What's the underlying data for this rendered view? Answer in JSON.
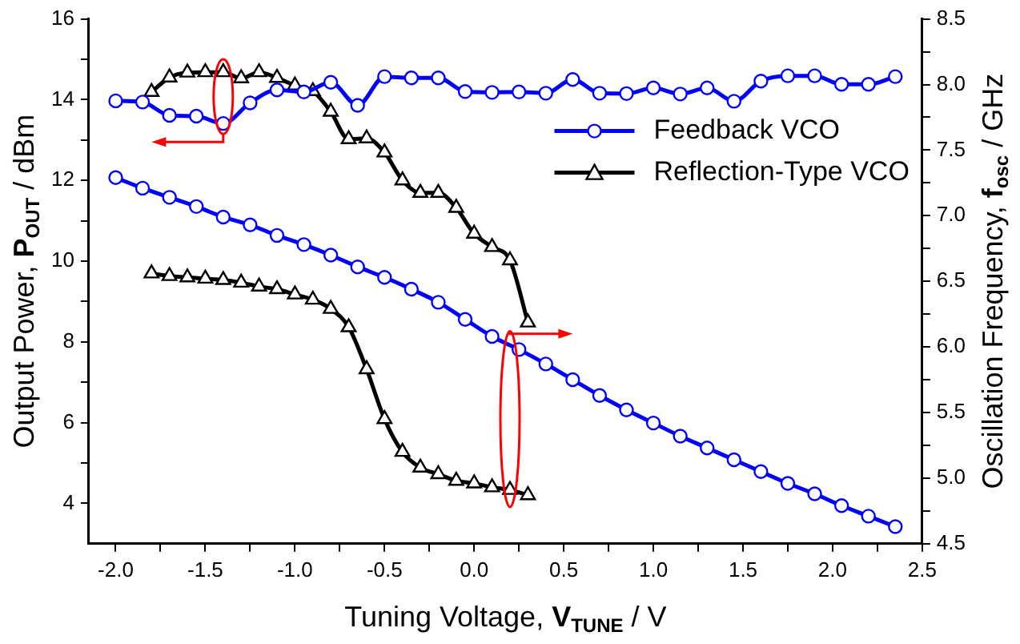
{
  "chart_data": {
    "type": "line",
    "xlabel": "Tuning Voltage, V$_{TUNE}$ / V",
    "ylabel": "Output Power, P$_{OUT}$ / dBm",
    "y2label": "Oscillation Frequency, f$_{osc}$ / GHz",
    "xlim": [
      -2.15,
      2.5
    ],
    "xticks": [
      {
        "value": -2,
        "label": "-2.0"
      },
      {
        "value": -1.75,
        "label": null
      },
      -1.5,
      {
        "value": -1.25,
        "label": null
      },
      {
        "value": -1,
        "label": "-1.0"
      },
      {
        "value": -0.75,
        "label": null
      },
      -0.5,
      {
        "value": -0.25,
        "label": null
      },
      {
        "value": 0,
        "label": "0.0"
      },
      {
        "value": 0.25,
        "label": null
      },
      0.5,
      {
        "value": 0.75,
        "label": null
      },
      {
        "value": 1,
        "label": "1.0"
      },
      {
        "value": 1.25,
        "label": null
      },
      1.5,
      {
        "value": 1.75,
        "label": null
      },
      {
        "value": 2,
        "label": "2.0"
      },
      {
        "value": 2.25,
        "label": null
      },
      2.5
    ],
    "ylim": [
      3,
      16
    ],
    "yticks": [
      4,
      {
        "value": 5,
        "label": null
      },
      6,
      {
        "value": 7,
        "label": null
      },
      8,
      {
        "value": 9,
        "label": null
      },
      10,
      {
        "value": 11,
        "label": null
      },
      12,
      {
        "value": 13,
        "label": null
      },
      14,
      {
        "value": 15,
        "label": null
      },
      16
    ],
    "y2lim": [
      4.5,
      8.5
    ],
    "y2ticks": [
      4.5,
      {
        "value": 4.75,
        "label": null
      },
      {
        "value": 5,
        "label": "5.0"
      },
      {
        "value": 5.25,
        "label": null
      },
      5.5,
      {
        "value": 5.75,
        "label": null
      },
      {
        "value": 6,
        "label": "6.0"
      },
      {
        "value": 6.25,
        "label": null
      },
      6.5,
      {
        "value": 6.75,
        "label": null
      },
      {
        "value": 7,
        "label": "7.0"
      },
      {
        "value": 7.25,
        "label": null
      },
      7.5,
      {
        "value": 7.75,
        "label": null
      },
      {
        "value": 8,
        "label": "8.0"
      },
      {
        "value": 8.25,
        "label": null
      },
      8.5
    ],
    "legend": "top right",
    "series": [
      {
        "name": "Feedback VCO",
        "color": "#0000ff",
        "marker": "circle",
        "x": [
          -2.0,
          -1.85,
          -1.7,
          -1.55,
          -1.4,
          -1.25,
          -1.1,
          -0.95,
          -0.8,
          -0.65,
          -0.5,
          -0.35,
          -0.2,
          -0.05,
          0.1,
          0.25,
          0.4,
          0.55,
          0.7,
          0.85,
          1.0,
          1.15,
          1.3,
          1.45,
          1.6,
          1.75,
          1.9,
          2.05,
          2.2,
          2.35
        ],
        "values": [
          13.97,
          13.94,
          13.61,
          13.59,
          13.41,
          13.92,
          14.24,
          14.19,
          14.43,
          13.86,
          14.57,
          14.54,
          14.54,
          14.2,
          14.18,
          14.19,
          14.16,
          14.5,
          14.16,
          14.15,
          14.29,
          14.14,
          14.29,
          13.96,
          14.46,
          14.59,
          14.59,
          14.38,
          14.38,
          14.57
        ]
      },
      {
        "color": "#0000ff",
        "marker": "circle",
        "axis": "y2",
        "x": [
          -2.0,
          -1.85,
          -1.7,
          -1.55,
          -1.4,
          -1.25,
          -1.1,
          -0.95,
          -0.8,
          -0.65,
          -0.5,
          -0.35,
          -0.2,
          -0.05,
          0.1,
          0.25,
          0.4,
          0.55,
          0.7,
          0.85,
          1.0,
          1.15,
          1.3,
          1.45,
          1.6,
          1.75,
          1.9,
          2.05,
          2.2,
          2.35
        ],
        "values": [
          7.29,
          7.21,
          7.14,
          7.07,
          6.99,
          6.93,
          6.85,
          6.78,
          6.7,
          6.61,
          6.53,
          6.44,
          6.34,
          6.21,
          6.08,
          5.98,
          5.87,
          5.75,
          5.63,
          5.52,
          5.42,
          5.32,
          5.23,
          5.14,
          5.05,
          4.96,
          4.88,
          4.79,
          4.71,
          4.63
        ]
      },
      {
        "name": "Reflection-Type VCO",
        "color": "#000000",
        "marker": "triangle",
        "x": [
          -1.8,
          -1.7,
          -1.6,
          -1.5,
          -1.4,
          -1.3,
          -1.2,
          -1.1,
          -1.0,
          -0.9,
          -0.8,
          -0.7,
          -0.6,
          -0.5,
          -0.4,
          -0.3,
          -0.2,
          -0.1,
          0.0,
          0.1,
          0.2,
          0.3
        ],
        "values": [
          14.19,
          14.55,
          14.67,
          14.68,
          14.68,
          14.53,
          14.68,
          14.54,
          14.35,
          14.21,
          13.7,
          13.02,
          13.04,
          12.69,
          12.0,
          11.69,
          11.69,
          11.32,
          10.68,
          10.35,
          10.02,
          8.48
        ]
      },
      {
        "color": "#000000",
        "marker": "triangle",
        "axis": "y2",
        "x": [
          -1.8,
          -1.7,
          -1.6,
          -1.5,
          -1.4,
          -1.3,
          -1.2,
          -1.1,
          -1.0,
          -0.9,
          -0.8,
          -0.7,
          -0.6,
          -0.5,
          -0.4,
          -0.3,
          -0.2,
          -0.1,
          0.0,
          0.1,
          0.2,
          0.3
        ],
        "values": [
          6.56,
          6.54,
          6.53,
          6.52,
          6.51,
          6.49,
          6.46,
          6.44,
          6.4,
          6.36,
          6.29,
          6.15,
          5.83,
          5.45,
          5.2,
          5.08,
          5.03,
          4.98,
          4.96,
          4.93,
          4.91,
          4.87
        ]
      }
    ]
  }
}
